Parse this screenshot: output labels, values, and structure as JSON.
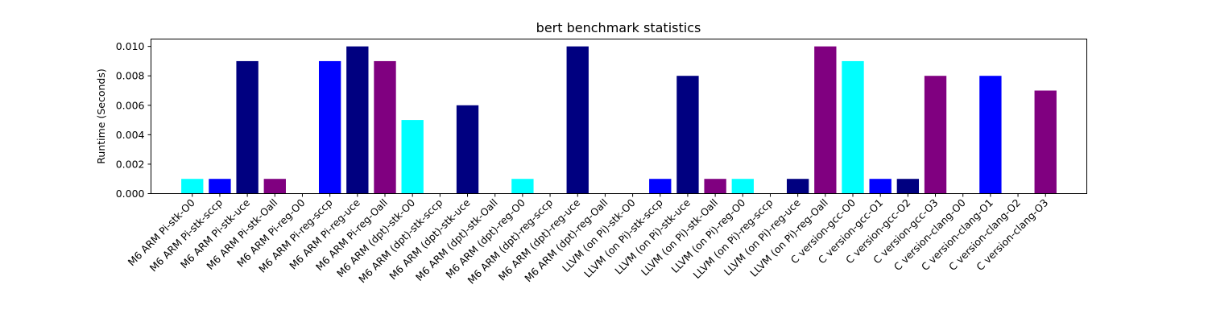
{
  "chart_data": {
    "type": "bar",
    "title": "bert benchmark statistics",
    "xlabel": "",
    "ylabel": "Runtime (Seconds)",
    "ylim": [
      0,
      0.0105
    ],
    "yticks": [
      "0.000",
      "0.002",
      "0.004",
      "0.006",
      "0.008",
      "0.010"
    ],
    "grid": false,
    "legend": "none",
    "colors": {
      "cyan": "#00ffff",
      "blue": "#0000ff",
      "navy": "#000080",
      "purple": "#800080"
    },
    "categories": [
      "M6 ARM Pi-stk-O0",
      "M6 ARM Pi-stk-sccp",
      "M6 ARM Pi-stk-uce",
      "M6 ARM Pi-stk-Oall",
      "M6 ARM Pi-reg-O0",
      "M6 ARM Pi-reg-sccp",
      "M6 ARM Pi-reg-uce",
      "M6 ARM Pi-reg-Oall",
      "M6 ARM (dpt)-stk-O0",
      "M6 ARM (dpt)-stk-sccp",
      "M6 ARM (dpt)-stk-uce",
      "M6 ARM (dpt)-stk-Oall",
      "M6 ARM (dpt)-reg-O0",
      "M6 ARM (dpt)-reg-sccp",
      "M6 ARM (dpt)-reg-uce",
      "M6 ARM (dpt)-reg-Oall",
      "LLVM (on Pi)-stk-O0",
      "LLVM (on Pi)-stk-sccp",
      "LLVM (on Pi)-stk-uce",
      "LLVM (on Pi)-stk-Oall",
      "LLVM (on Pi)-reg-O0",
      "LLVM (on Pi)-reg-sccp",
      "LLVM (on Pi)-reg-uce",
      "LLVM (on Pi)-reg-Oall",
      "C version-gcc-O0",
      "C version-gcc-O1",
      "C version-gcc-O2",
      "C version-gcc-O3",
      "C version-clang-O0",
      "C version-clang-O1",
      "C version-clang-O2",
      "C version-clang-O3"
    ],
    "values": [
      0.001,
      0.001,
      0.009,
      0.001,
      0,
      0.009,
      0.01,
      0.009,
      0.005,
      0,
      0.006,
      0,
      0.001,
      0,
      0.01,
      0,
      0,
      0.001,
      0.008,
      0.001,
      0.001,
      0,
      0.001,
      0.01,
      0.009,
      0.001,
      0.001,
      0.008,
      0,
      0.008,
      0,
      0.007
    ],
    "bar_colors": [
      "#00ffff",
      "#0000ff",
      "#000080",
      "#800080",
      "#00ffff",
      "#0000ff",
      "#000080",
      "#800080",
      "#00ffff",
      "#0000ff",
      "#000080",
      "#800080",
      "#00ffff",
      "#0000ff",
      "#000080",
      "#800080",
      "#00ffff",
      "#0000ff",
      "#000080",
      "#800080",
      "#00ffff",
      "#0000ff",
      "#000080",
      "#800080",
      "#00ffff",
      "#0000ff",
      "#000080",
      "#800080",
      "#00ffff",
      "#0000ff",
      "#000080",
      "#800080"
    ]
  }
}
